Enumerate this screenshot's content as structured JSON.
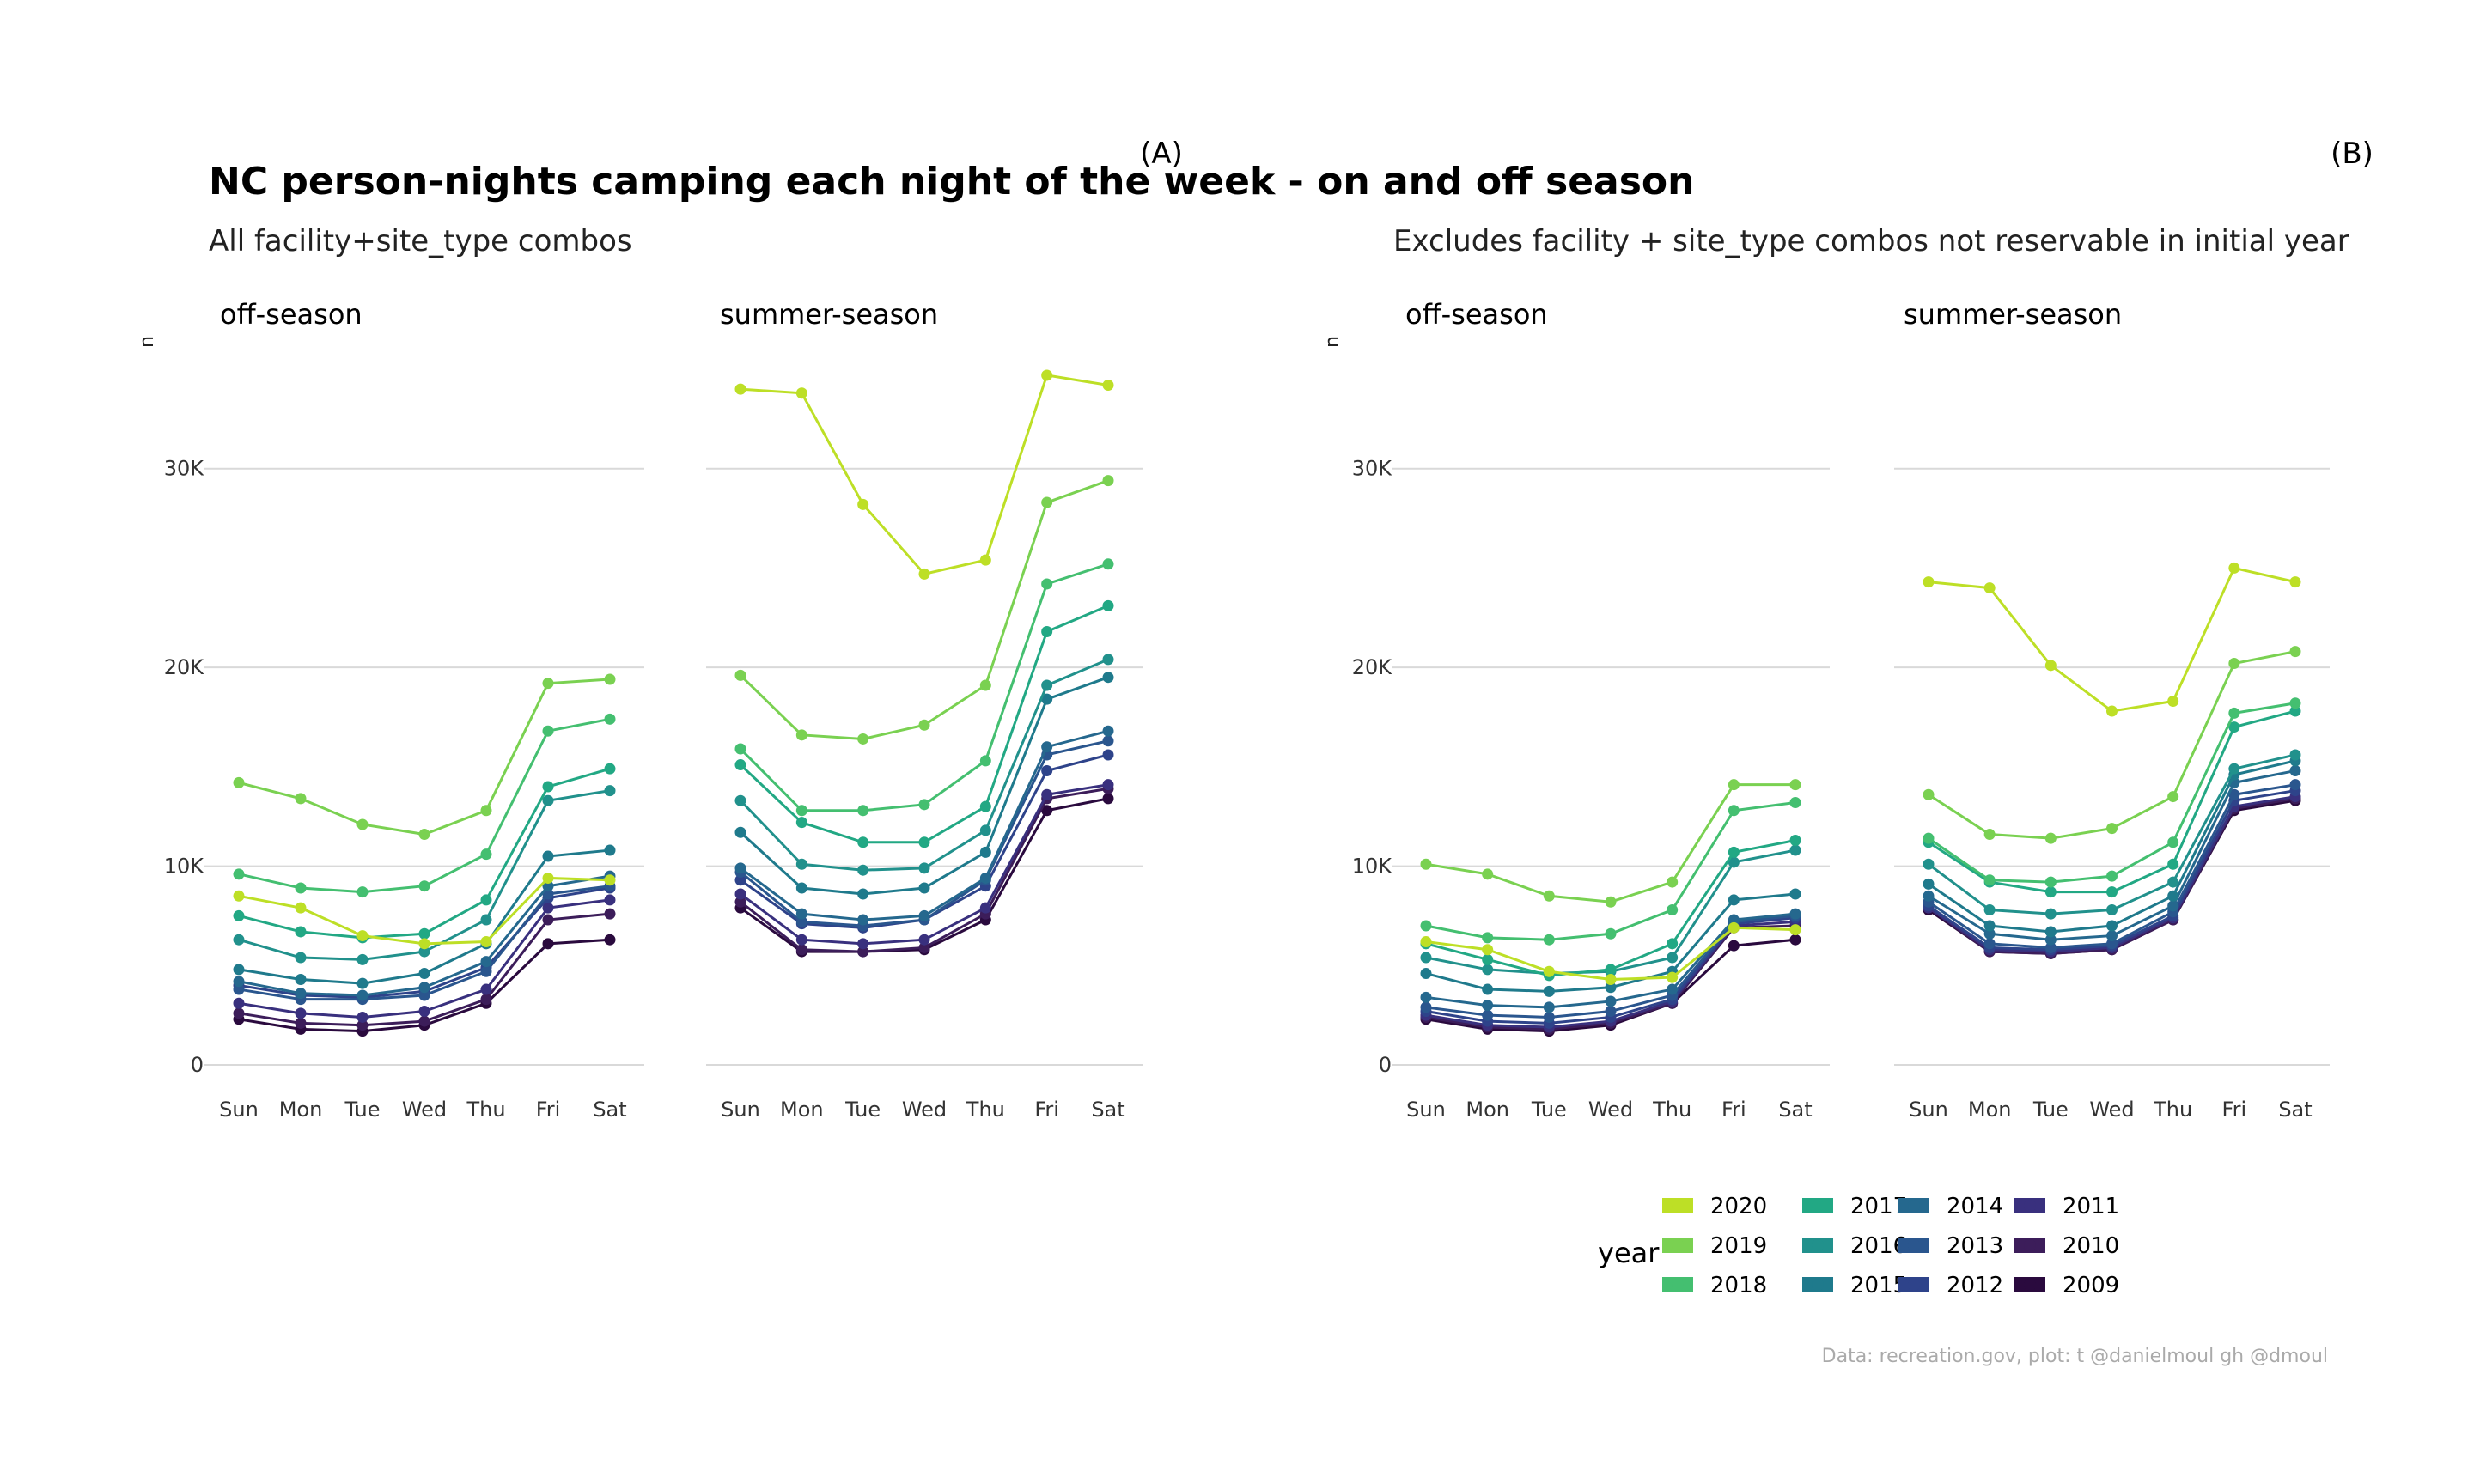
{
  "title": "NC person-nights camping each night of the week - on and off season",
  "caption": "Data: recreation.gov, plot: t @danielmoul gh @dmoul",
  "legend": {
    "title": "year"
  },
  "colors": {
    "2020": "#bddf26",
    "2019": "#7ad151",
    "2018": "#44bf70",
    "2017": "#22a884",
    "2016": "#21918c",
    "2015": "#1f7a8c",
    "2014": "#25688e",
    "2013": "#2a568e",
    "2012": "#2e438a",
    "2011": "#39307e",
    "2010": "#3c1d5a",
    "2009": "#2a0a3e"
  },
  "chart_data": [
    {
      "tag": "(A)",
      "subtitle": "All facility+site_type combos",
      "type": "line",
      "ylabel": "n",
      "ylim": [
        0,
        35000
      ],
      "y_ticks": [
        0,
        10000,
        20000,
        30000
      ],
      "y_tick_labels": [
        "0",
        "10K",
        "20K",
        "30K"
      ],
      "categories": [
        "Sun",
        "Mon",
        "Tue",
        "Wed",
        "Thu",
        "Fri",
        "Sat"
      ],
      "panels": [
        {
          "facet": "off-season",
          "series": [
            {
              "name": "2020",
              "values": [
                8500,
                7900,
                6500,
                6100,
                6200,
                9400,
                9300
              ]
            },
            {
              "name": "2019",
              "values": [
                14200,
                13400,
                12100,
                11600,
                12800,
                19200,
                19400
              ]
            },
            {
              "name": "2018",
              "values": [
                9600,
                8900,
                8700,
                9000,
                10600,
                16800,
                17400
              ]
            },
            {
              "name": "2017",
              "values": [
                7500,
                6700,
                6400,
                6600,
                8300,
                14000,
                14900
              ]
            },
            {
              "name": "2016",
              "values": [
                6300,
                5400,
                5300,
                5700,
                7300,
                13300,
                13800
              ]
            },
            {
              "name": "2015",
              "values": [
                4800,
                4300,
                4100,
                4600,
                6100,
                10500,
                10800
              ]
            },
            {
              "name": "2014",
              "values": [
                4200,
                3600,
                3500,
                3900,
                5200,
                9000,
                9500
              ]
            },
            {
              "name": "2013",
              "values": [
                3800,
                3300,
                3300,
                3500,
                4700,
                8600,
                9000
              ]
            },
            {
              "name": "2012",
              "values": [
                4000,
                3500,
                3400,
                3700,
                4900,
                8400,
                8900
              ]
            },
            {
              "name": "2011",
              "values": [
                3100,
                2600,
                2400,
                2700,
                3800,
                7900,
                8300
              ]
            },
            {
              "name": "2010",
              "values": [
                2600,
                2100,
                2000,
                2200,
                3300,
                7300,
                7600
              ]
            },
            {
              "name": "2009",
              "values": [
                2300,
                1800,
                1700,
                2000,
                3100,
                6100,
                6300
              ]
            }
          ]
        },
        {
          "facet": "summer-season",
          "series": [
            {
              "name": "2020",
              "values": [
                34000,
                33800,
                28200,
                24700,
                25400,
                34700,
                34200
              ]
            },
            {
              "name": "2019",
              "values": [
                19600,
                16600,
                16400,
                17100,
                19100,
                28300,
                29400
              ]
            },
            {
              "name": "2018",
              "values": [
                15900,
                12800,
                12800,
                13100,
                15300,
                24200,
                25200
              ]
            },
            {
              "name": "2017",
              "values": [
                15100,
                12200,
                11200,
                11200,
                13000,
                21800,
                23100
              ]
            },
            {
              "name": "2016",
              "values": [
                13300,
                10100,
                9800,
                9900,
                11800,
                19100,
                20400
              ]
            },
            {
              "name": "2015",
              "values": [
                11700,
                8900,
                8600,
                8900,
                10700,
                18400,
                19500
              ]
            },
            {
              "name": "2014",
              "values": [
                9900,
                7600,
                7300,
                7500,
                9400,
                16000,
                16800
              ]
            },
            {
              "name": "2013",
              "values": [
                9700,
                7200,
                7000,
                7300,
                9300,
                15600,
                16300
              ]
            },
            {
              "name": "2012",
              "values": [
                9300,
                7100,
                6900,
                7300,
                9000,
                14800,
                15600
              ]
            },
            {
              "name": "2011",
              "values": [
                8600,
                6300,
                6100,
                6300,
                7900,
                13600,
                14100
              ]
            },
            {
              "name": "2010",
              "values": [
                8200,
                5800,
                5700,
                5900,
                7600,
                13400,
                13900
              ]
            },
            {
              "name": "2009",
              "values": [
                7900,
                5700,
                5700,
                5800,
                7300,
                12800,
                13400
              ]
            }
          ]
        }
      ]
    },
    {
      "tag": "(B)",
      "subtitle": "Excludes facility + site_type combos not reservable in initial year",
      "type": "line",
      "ylabel": "n",
      "ylim": [
        0,
        35000
      ],
      "y_ticks": [
        0,
        10000,
        20000,
        30000
      ],
      "y_tick_labels": [
        "0",
        "10K",
        "20K",
        "30K"
      ],
      "categories": [
        "Sun",
        "Mon",
        "Tue",
        "Wed",
        "Thu",
        "Fri",
        "Sat"
      ],
      "panels": [
        {
          "facet": "off-season",
          "series": [
            {
              "name": "2020",
              "values": [
                6200,
                5800,
                4700,
                4300,
                4400,
                6900,
                6800
              ]
            },
            {
              "name": "2019",
              "values": [
                10100,
                9600,
                8500,
                8200,
                9200,
                14100,
                14100
              ]
            },
            {
              "name": "2018",
              "values": [
                7000,
                6400,
                6300,
                6600,
                7800,
                12800,
                13200
              ]
            },
            {
              "name": "2017",
              "values": [
                6100,
                5300,
                4500,
                4800,
                6100,
                10700,
                11300
              ]
            },
            {
              "name": "2016",
              "values": [
                5400,
                4800,
                4600,
                4700,
                5400,
                10200,
                10800
              ]
            },
            {
              "name": "2015",
              "values": [
                4600,
                3800,
                3700,
                3900,
                4700,
                8300,
                8600
              ]
            },
            {
              "name": "2014",
              "values": [
                3400,
                3000,
                2900,
                3200,
                3800,
                7300,
                7600
              ]
            },
            {
              "name": "2013",
              "values": [
                2900,
                2500,
                2400,
                2700,
                3500,
                7200,
                7500
              ]
            },
            {
              "name": "2012",
              "values": [
                2700,
                2200,
                2100,
                2400,
                3300,
                7100,
                7400
              ]
            },
            {
              "name": "2011",
              "values": [
                2500,
                2000,
                1900,
                2200,
                3200,
                7000,
                7200
              ]
            },
            {
              "name": "2010",
              "values": [
                2400,
                1900,
                1800,
                2100,
                3100,
                6900,
                7000
              ]
            },
            {
              "name": "2009",
              "values": [
                2300,
                1800,
                1700,
                2000,
                3100,
                6000,
                6300
              ]
            }
          ]
        },
        {
          "facet": "summer-season",
          "series": [
            {
              "name": "2020",
              "values": [
                24300,
                24000,
                20100,
                17800,
                18300,
                25000,
                24300
              ]
            },
            {
              "name": "2019",
              "values": [
                13600,
                11600,
                11400,
                11900,
                13500,
                20200,
                20800
              ]
            },
            {
              "name": "2018",
              "values": [
                11400,
                9300,
                9200,
                9500,
                11200,
                17700,
                18200
              ]
            },
            {
              "name": "2017",
              "values": [
                11200,
                9200,
                8700,
                8700,
                10100,
                17000,
                17800
              ]
            },
            {
              "name": "2016",
              "values": [
                10100,
                7800,
                7600,
                7800,
                9200,
                14900,
                15600
              ]
            },
            {
              "name": "2015",
              "values": [
                9100,
                7000,
                6700,
                7000,
                8500,
                14600,
                15300
              ]
            },
            {
              "name": "2014",
              "values": [
                8500,
                6600,
                6300,
                6500,
                8000,
                14200,
                14800
              ]
            },
            {
              "name": "2013",
              "values": [
                8200,
                6100,
                5900,
                6100,
                7700,
                13600,
                14100
              ]
            },
            {
              "name": "2012",
              "values": [
                8000,
                5900,
                5800,
                6000,
                7500,
                13300,
                13800
              ]
            },
            {
              "name": "2011",
              "values": [
                7900,
                5800,
                5700,
                5900,
                7400,
                13000,
                13500
              ]
            },
            {
              "name": "2010",
              "values": [
                7900,
                5700,
                5600,
                5800,
                7300,
                12900,
                13400
              ]
            },
            {
              "name": "2009",
              "values": [
                7800,
                5700,
                5600,
                5800,
                7300,
                12800,
                13300
              ]
            }
          ]
        }
      ]
    }
  ]
}
